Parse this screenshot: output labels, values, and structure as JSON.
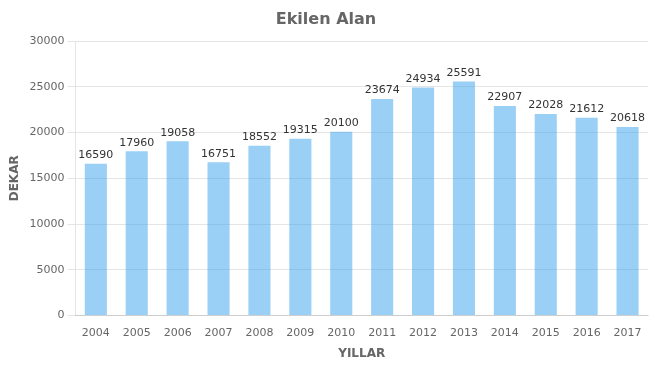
{
  "chart_data": {
    "type": "bar",
    "title": "Ekilen Alan",
    "xlabel": "YILLAR",
    "ylabel": "DEKAR",
    "categories": [
      "2004",
      "2005",
      "2006",
      "2007",
      "2008",
      "2009",
      "2010",
      "2011",
      "2012",
      "2013",
      "2014",
      "2015",
      "2016",
      "2017"
    ],
    "values": [
      16590,
      17960,
      19058,
      16751,
      18552,
      19315,
      20100,
      23674,
      24934,
      25591,
      22907,
      22028,
      21612,
      20618
    ],
    "ylim": [
      0,
      30000
    ],
    "yticks": [
      0,
      5000,
      10000,
      15000,
      20000,
      25000,
      30000
    ],
    "grid": true,
    "data_labels": true
  }
}
